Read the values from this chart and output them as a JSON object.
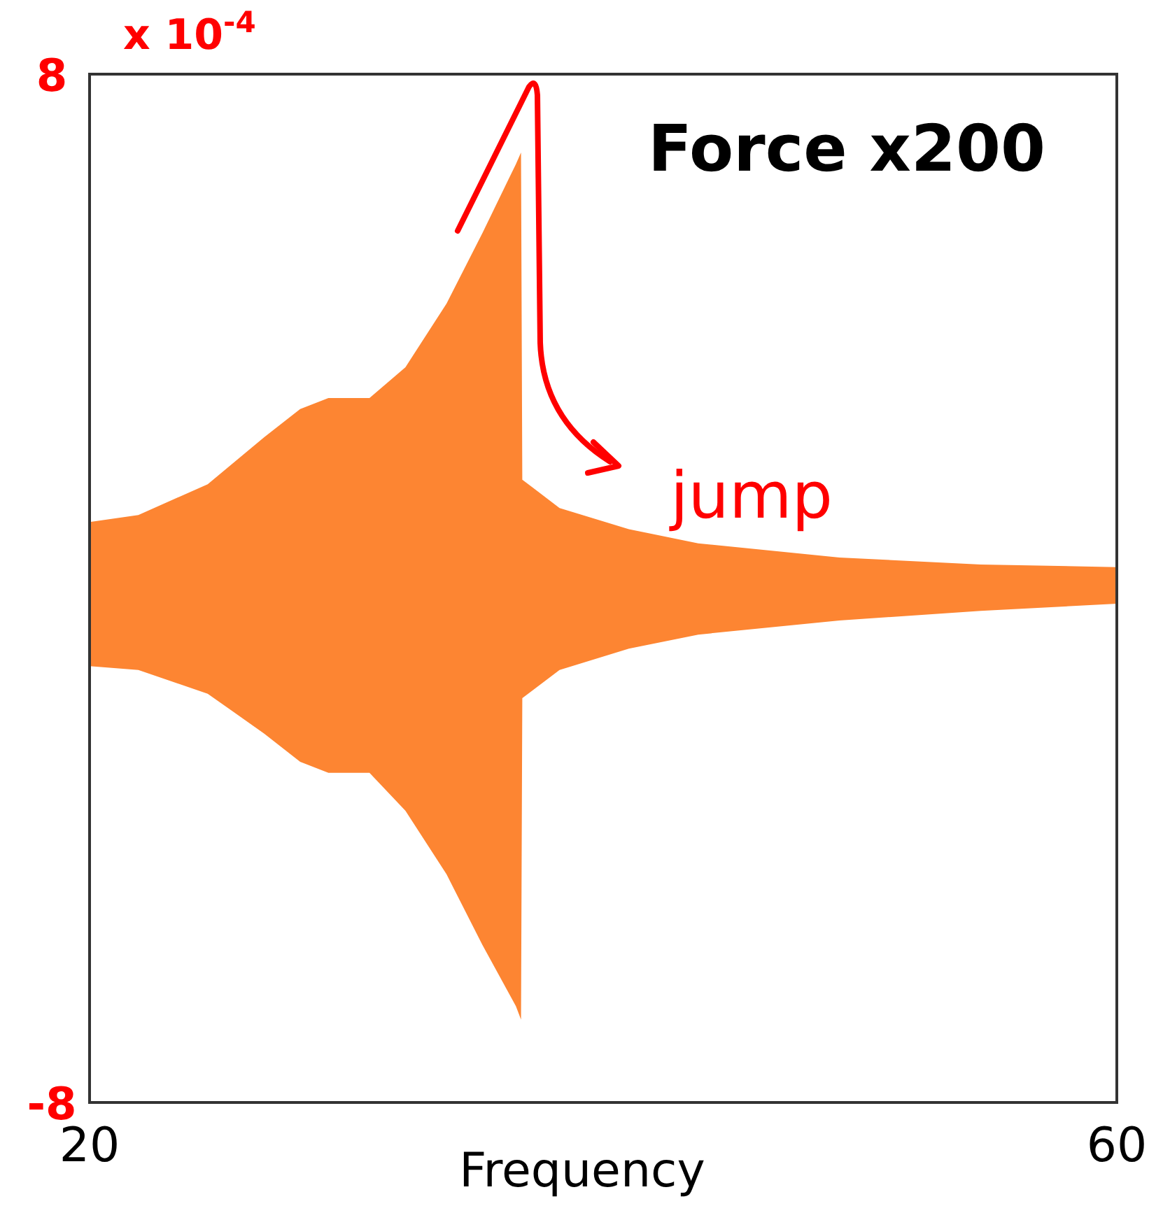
{
  "chart_data": {
    "type": "area",
    "xlabel": "Frequency",
    "annotations": [
      "Force x200",
      "jump",
      "x 10$^{-4}$"
    ],
    "xlim": [
      20,
      60
    ],
    "ylim": [
      -8,
      8
    ],
    "xticks": [
      20,
      60
    ],
    "yticks": [
      8,
      -8
    ],
    "series": [
      {
        "color": "#fd8532",
        "x": [
          20,
          21.9,
          24.6,
          26.8,
          28.2,
          29.3,
          30.9,
          32.3,
          33.9,
          35.3,
          36.6,
          36.8,
          36.85,
          38.3,
          41,
          43.7,
          49.2,
          54.7,
          60
        ],
        "values": [
          1.03,
          1.14,
          1.62,
          2.35,
          2.79,
          2.96,
          2.96,
          3.44,
          4.43,
          5.53,
          6.6,
          6.78,
          1.69,
          1.25,
          0.92,
          0.7,
          0.48,
          0.37,
          0.33
        ]
      },
      {
        "color": "#fd8532",
        "x": [
          20,
          21.9,
          24.6,
          26.8,
          28.2,
          29.3,
          30.9,
          32.3,
          33.9,
          35.3,
          36.6,
          36.8,
          36.85,
          38.3,
          41,
          43.7,
          49.2,
          54.7,
          60
        ],
        "values": [
          -1.21,
          -1.27,
          -1.64,
          -2.26,
          -2.7,
          -2.87,
          -2.87,
          -3.46,
          -4.45,
          -5.55,
          -6.5,
          -6.71,
          -1.71,
          -1.27,
          -0.94,
          -0.72,
          -0.5,
          -0.35,
          -0.24
        ]
      }
    ]
  }
}
